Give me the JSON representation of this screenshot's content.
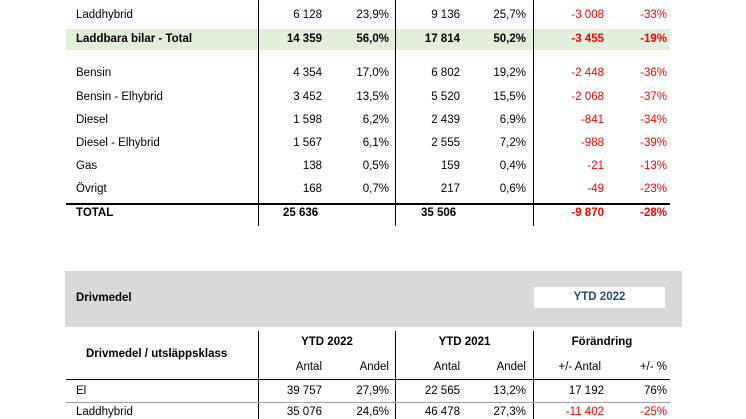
{
  "colors": {
    "highlight_bg": "#e2efda",
    "negative": "#ff0000",
    "section_bg": "#d9d9d9",
    "ytd_box_text": "#1f4e79"
  },
  "table1": {
    "rows": [
      {
        "label": "Laddhybrid",
        "a1": "6 128",
        "s1": "23,9%",
        "a2": "9 136",
        "s2": "25,7%",
        "ch": "-3 008",
        "pct": "-33%"
      },
      {
        "label": "Laddbara bilar - Total",
        "a1": "14 359",
        "s1": "56,0%",
        "a2": "17 814",
        "s2": "50,2%",
        "ch": "-3 455",
        "pct": "-19%"
      },
      {
        "label": "Bensin",
        "a1": "4 354",
        "s1": "17,0%",
        "a2": "6 802",
        "s2": "19,2%",
        "ch": "-2 448",
        "pct": "-36%"
      },
      {
        "label": "Bensin - Elhybrid",
        "a1": "3 452",
        "s1": "13,5%",
        "a2": "5 520",
        "s2": "15,5%",
        "ch": "-2 068",
        "pct": "-37%"
      },
      {
        "label": "Diesel",
        "a1": "1 598",
        "s1": "6,2%",
        "a2": "2 439",
        "s2": "6,9%",
        "ch": "-841",
        "pct": "-34%"
      },
      {
        "label": "Diesel - Elhybrid",
        "a1": "1 567",
        "s1": "6,1%",
        "a2": "2 555",
        "s2": "7,2%",
        "ch": "-988",
        "pct": "-39%"
      },
      {
        "label": "Gas",
        "a1": "138",
        "s1": "0,5%",
        "a2": "159",
        "s2": "0,4%",
        "ch": "-21",
        "pct": "-13%"
      },
      {
        "label": "Övrigt",
        "a1": "168",
        "s1": "0,7%",
        "a2": "217",
        "s2": "0,6%",
        "ch": "-49",
        "pct": "-23%"
      }
    ],
    "total": {
      "label": "TOTAL",
      "a1": "25 636",
      "a2": "35 506",
      "ch": "-9 870",
      "pct": "-28%"
    }
  },
  "section2": {
    "title": "Drivmedel",
    "period_box": "YTD 2022"
  },
  "table2": {
    "row_header": "Drivmedel / utsläppsklass",
    "groups": {
      "g1": "YTD 2022",
      "g2": "YTD 2021",
      "g3": "Förändring"
    },
    "subheaders": {
      "antal1": "Antal",
      "andel1": "Andel",
      "antal2": "Antal",
      "andel2": "Andel",
      "change": "+/- Antal",
      "pct": "+/- %"
    },
    "rows": [
      {
        "label": "El",
        "a1": "39 757",
        "s1": "27,9%",
        "a2": "22 565",
        "s2": "13,2%",
        "ch": "17 192",
        "pct": "76%"
      },
      {
        "label": "Laddhybrid",
        "a1": "35 076",
        "s1": "24,6%",
        "a2": "46 478",
        "s2": "27,3%",
        "ch": "-11 402",
        "pct": "-25%"
      }
    ]
  }
}
